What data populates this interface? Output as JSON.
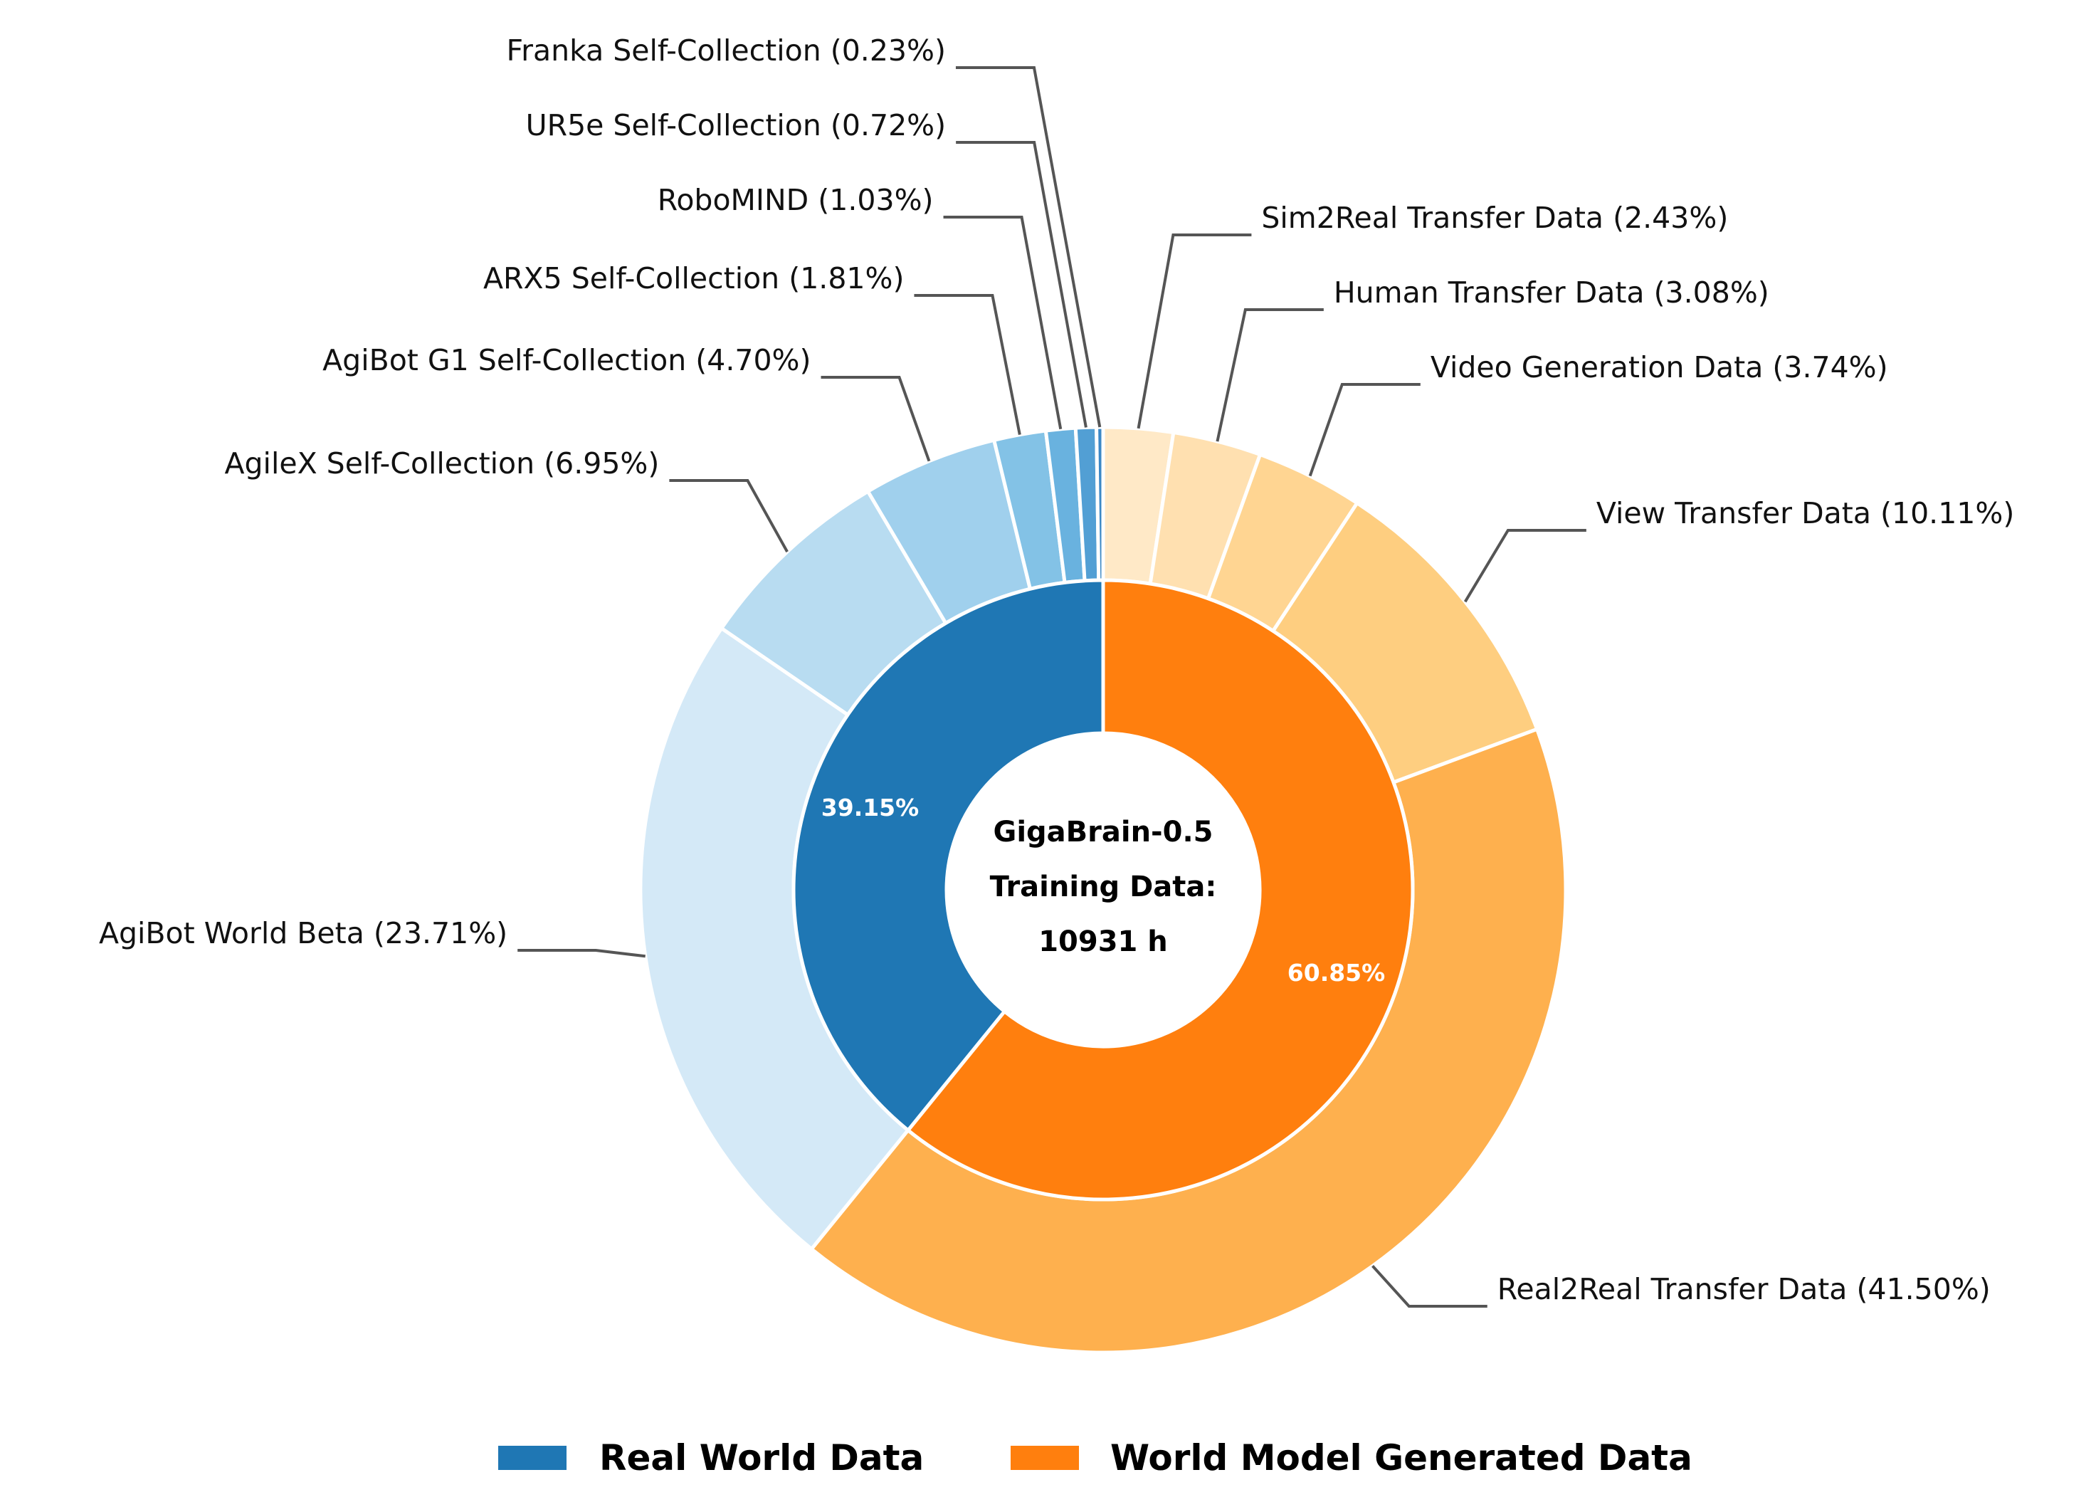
{
  "chart_data": {
    "type": "pie",
    "subtype": "nested-donut",
    "center_title": {
      "line1": "GigaBrain-0.5",
      "line2": "Training Data:",
      "line3": "10931 h"
    },
    "inner_ring": [
      {
        "name": "Real World Data",
        "value": 39.15,
        "label": "39.15%",
        "color": "#1f77b4"
      },
      {
        "name": "World Model Generated Data",
        "value": 60.85,
        "label": "60.85%",
        "color": "#ff7f0e"
      }
    ],
    "outer_ring": [
      {
        "name": "Sim2Real Transfer Data",
        "value": 2.43,
        "label": "Sim2Real Transfer Data (2.43%)",
        "group": "World Model Generated Data",
        "color": "#ffe9c7"
      },
      {
        "name": "Human Transfer Data",
        "value": 3.08,
        "label": "Human Transfer Data (3.08%)",
        "group": "World Model Generated Data",
        "color": "#ffe0b0"
      },
      {
        "name": "Video Generation Data",
        "value": 3.74,
        "label": "Video Generation Data (3.74%)",
        "group": "World Model Generated Data",
        "color": "#ffd592"
      },
      {
        "name": "View Transfer Data",
        "value": 10.11,
        "label": "View Transfer Data (10.11%)",
        "group": "World Model Generated Data",
        "color": "#fece80"
      },
      {
        "name": "Real2Real Transfer Data",
        "value": 41.5,
        "label": "Real2Real Transfer Data (41.50%)",
        "group": "World Model Generated Data",
        "color": "#feb04e"
      },
      {
        "name": "AgiBot World Beta",
        "value": 23.71,
        "label": "AgiBot World Beta (23.71%)",
        "group": "Real World Data",
        "color": "#d4e9f7"
      },
      {
        "name": "AgileX Self-Collection",
        "value": 6.95,
        "label": "AgileX Self-Collection (6.95%)",
        "group": "Real World Data",
        "color": "#b8dcf1"
      },
      {
        "name": "AgiBot G1 Self-Collection",
        "value": 4.7,
        "label": "AgiBot G1 Self-Collection (4.70%)",
        "group": "Real World Data",
        "color": "#a0d0ed"
      },
      {
        "name": "ARX5 Self-Collection",
        "value": 1.81,
        "label": "ARX5 Self-Collection (1.81%)",
        "group": "Real World Data",
        "color": "#83c2e6"
      },
      {
        "name": "RoboMIND",
        "value": 1.03,
        "label": "RoboMIND (1.03%)",
        "group": "Real World Data",
        "color": "#69b2df"
      },
      {
        "name": "UR5e Self-Collection",
        "value": 0.72,
        "label": "UR5e Self-Collection (0.72%)",
        "group": "Real World Data",
        "color": "#529fd4"
      },
      {
        "name": "Franka Self-Collection",
        "value": 0.23,
        "label": "Franka Self-Collection (0.23%)",
        "group": "Real World Data",
        "color": "#3b88c6"
      }
    ],
    "legend": {
      "position": "bottom",
      "items": [
        {
          "label": "Real World Data",
          "color": "#1f77b4"
        },
        {
          "label": "World Model Generated Data",
          "color": "#ff7f0e"
        }
      ]
    }
  }
}
